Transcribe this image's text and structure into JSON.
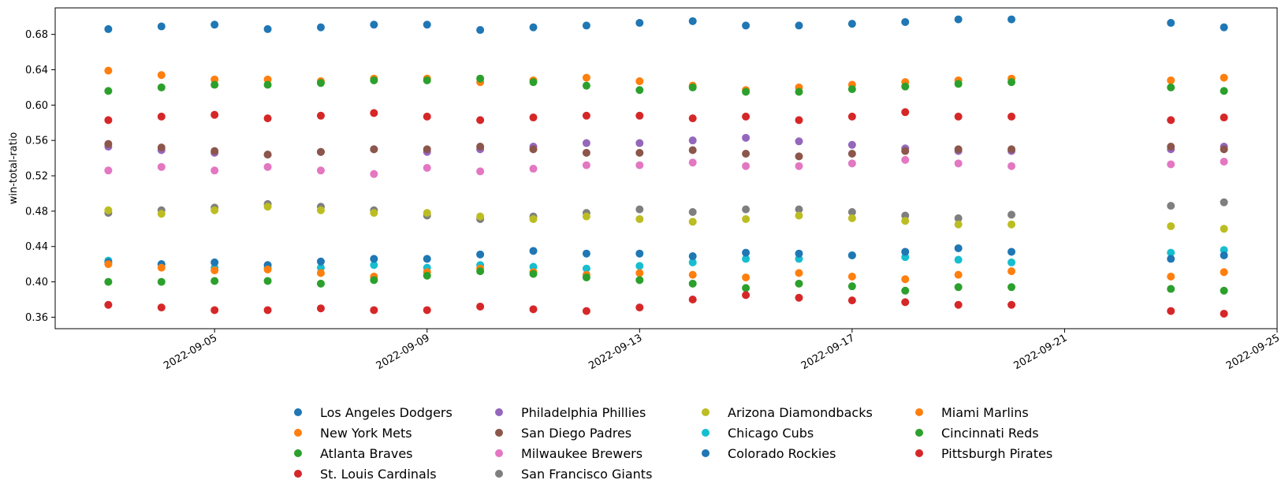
{
  "chart_data": {
    "type": "scatter",
    "title": "",
    "xlabel": "",
    "ylabel": "win-total-ratio",
    "ylim": [
      0.347,
      0.71
    ],
    "xlim": [
      "2022-09-02",
      "2022-09-25"
    ],
    "yticks": [
      0.36,
      0.4,
      0.44,
      0.48,
      0.52,
      0.56,
      0.6,
      0.64,
      0.68
    ],
    "ytick_labels": [
      "0.36",
      "0.40",
      "0.44",
      "0.48",
      "0.52",
      "0.56",
      "0.60",
      "0.64",
      "0.68"
    ],
    "xticks": [
      "2022-09-05",
      "2022-09-09",
      "2022-09-13",
      "2022-09-17",
      "2022-09-21",
      "2022-09-25"
    ],
    "grid": false,
    "legend_position": "bottom-center",
    "x": [
      "2022-09-03",
      "2022-09-04",
      "2022-09-05",
      "2022-09-06",
      "2022-09-07",
      "2022-09-08",
      "2022-09-09",
      "2022-09-10",
      "2022-09-11",
      "2022-09-12",
      "2022-09-13",
      "2022-09-14",
      "2022-09-15",
      "2022-09-16",
      "2022-09-17",
      "2022-09-18",
      "2022-09-19",
      "2022-09-20",
      "2022-09-23",
      "2022-09-24"
    ],
    "series": [
      {
        "name": "Los Angeles Dodgers",
        "color": "#1f77b4",
        "values": [
          0.686,
          0.689,
          0.691,
          0.686,
          0.688,
          0.691,
          0.691,
          0.685,
          0.688,
          0.69,
          0.693,
          0.695,
          0.69,
          0.69,
          0.692,
          0.694,
          0.697,
          0.697,
          0.693,
          0.688
        ]
      },
      {
        "name": "New York Mets",
        "color": "#ff7f0e",
        "values": [
          0.639,
          0.634,
          0.629,
          0.629,
          0.627,
          0.63,
          0.63,
          0.626,
          0.628,
          0.631,
          0.627,
          0.622,
          0.617,
          0.62,
          0.623,
          0.626,
          0.628,
          0.63,
          0.628,
          0.631
        ]
      },
      {
        "name": "Atlanta Braves",
        "color": "#2ca02c",
        "values": [
          0.616,
          0.62,
          0.623,
          0.623,
          0.625,
          0.628,
          0.628,
          0.63,
          0.626,
          0.622,
          0.617,
          0.62,
          0.615,
          0.615,
          0.618,
          0.621,
          0.624,
          0.626,
          0.62,
          0.616
        ]
      },
      {
        "name": "St. Louis Cardinals",
        "color": "#d62728",
        "values": [
          0.583,
          0.587,
          0.589,
          0.585,
          0.588,
          0.591,
          0.587,
          0.583,
          0.586,
          0.588,
          0.588,
          0.585,
          0.587,
          0.583,
          0.587,
          0.592,
          0.587,
          0.587,
          0.583,
          0.586
        ]
      },
      {
        "name": "Philadelphia Phillies",
        "color": "#9467bd",
        "values": [
          0.553,
          0.549,
          0.546,
          0.544,
          0.547,
          0.55,
          0.547,
          0.55,
          0.553,
          0.557,
          0.557,
          0.56,
          0.563,
          0.559,
          0.555,
          0.551,
          0.548,
          0.548,
          0.55,
          0.553
        ]
      },
      {
        "name": "San Diego Padres",
        "color": "#8c564b",
        "values": [
          0.556,
          0.552,
          0.548,
          0.544,
          0.547,
          0.55,
          0.55,
          0.553,
          0.55,
          0.546,
          0.546,
          0.549,
          0.545,
          0.542,
          0.545,
          0.548,
          0.55,
          0.55,
          0.553,
          0.55
        ]
      },
      {
        "name": "Milwaukee Brewers",
        "color": "#e377c2",
        "values": [
          0.526,
          0.53,
          0.526,
          0.53,
          0.526,
          0.522,
          0.529,
          0.525,
          0.528,
          0.532,
          0.532,
          0.535,
          0.531,
          0.531,
          0.534,
          0.538,
          0.534,
          0.531,
          0.533,
          0.536
        ]
      },
      {
        "name": "San Francisco Giants",
        "color": "#7f7f7f",
        "values": [
          0.478,
          0.481,
          0.484,
          0.488,
          0.485,
          0.481,
          0.475,
          0.471,
          0.474,
          0.478,
          0.482,
          0.479,
          0.482,
          0.482,
          0.479,
          0.475,
          0.472,
          0.476,
          0.486,
          0.49
        ]
      },
      {
        "name": "Arizona Diamondbacks",
        "color": "#bcbd22",
        "values": [
          0.481,
          0.477,
          0.481,
          0.485,
          0.481,
          0.478,
          0.478,
          0.474,
          0.471,
          0.474,
          0.471,
          0.468,
          0.471,
          0.475,
          0.472,
          0.469,
          0.465,
          0.465,
          0.463,
          0.46
        ]
      },
      {
        "name": "Chicago Cubs",
        "color": "#17becf",
        "values": [
          0.424,
          0.42,
          0.416,
          0.416,
          0.416,
          0.419,
          0.416,
          0.419,
          0.417,
          0.415,
          0.418,
          0.422,
          0.426,
          0.426,
          0.43,
          0.428,
          0.425,
          0.422,
          0.433,
          0.436
        ]
      },
      {
        "name": "Colorado Rockies",
        "color": "#1f77b4",
        "values": [
          0.422,
          0.42,
          0.422,
          0.419,
          0.423,
          0.426,
          0.426,
          0.431,
          0.435,
          0.432,
          0.432,
          0.429,
          0.433,
          0.432,
          0.43,
          0.434,
          0.438,
          0.434,
          0.426,
          0.43
        ]
      },
      {
        "name": "Miami Marlins",
        "color": "#ff7f0e",
        "values": [
          0.42,
          0.416,
          0.413,
          0.414,
          0.41,
          0.406,
          0.411,
          0.415,
          0.411,
          0.408,
          0.41,
          0.408,
          0.405,
          0.41,
          0.406,
          0.403,
          0.408,
          0.412,
          0.406,
          0.411
        ]
      },
      {
        "name": "Cincinnati Reds",
        "color": "#2ca02c",
        "values": [
          0.4,
          0.4,
          0.401,
          0.401,
          0.398,
          0.402,
          0.407,
          0.412,
          0.409,
          0.405,
          0.402,
          0.398,
          0.393,
          0.398,
          0.395,
          0.39,
          0.394,
          0.394,
          0.392,
          0.39
        ]
      },
      {
        "name": "Pittsburgh Pirates",
        "color": "#d62728",
        "values": [
          0.374,
          0.371,
          0.368,
          0.368,
          0.37,
          0.368,
          0.368,
          0.372,
          0.369,
          0.367,
          0.371,
          0.38,
          0.385,
          0.382,
          0.379,
          0.377,
          0.374,
          0.374,
          0.367,
          0.364
        ]
      }
    ]
  }
}
